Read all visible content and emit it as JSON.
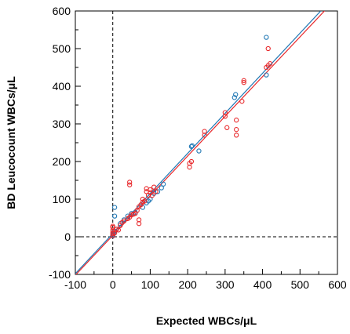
{
  "chart_data": {
    "type": "scatter",
    "title": "",
    "xlabel": "Expected WBCs/μL",
    "ylabel": "BD Leucocount WBCs/μL",
    "xlim": [
      -100,
      600
    ],
    "ylim": [
      -100,
      600
    ],
    "x_ticks": [
      "-100",
      "0",
      "100",
      "200",
      "300",
      "400",
      "500",
      "600"
    ],
    "y_ticks": [
      "-100",
      "0",
      "100",
      "200",
      "300",
      "400",
      "500",
      "600"
    ],
    "grid": false,
    "legend": "none",
    "reference_lines": [
      {
        "orientation": "vertical",
        "value": 0,
        "style": "dashed"
      },
      {
        "orientation": "horizontal",
        "value": 0,
        "style": "dashed"
      }
    ],
    "series": [
      {
        "color": "#1f77b4",
        "points": [
          [
            0,
            2
          ],
          [
            0,
            5
          ],
          [
            2,
            8
          ],
          [
            5,
            15
          ],
          [
            5,
            55
          ],
          [
            5,
            78
          ],
          [
            10,
            20
          ],
          [
            20,
            35
          ],
          [
            30,
            45
          ],
          [
            40,
            55
          ],
          [
            50,
            62
          ],
          [
            60,
            65
          ],
          [
            80,
            78
          ],
          [
            90,
            90
          ],
          [
            95,
            95
          ],
          [
            100,
            100
          ],
          [
            110,
            115
          ],
          [
            120,
            120
          ],
          [
            130,
            130
          ],
          [
            135,
            140
          ],
          [
            210,
            240
          ],
          [
            212,
            242
          ],
          [
            230,
            228
          ],
          [
            325,
            370
          ],
          [
            328,
            378
          ],
          [
            410,
            430
          ],
          [
            410,
            530
          ]
        ],
        "fit": {
          "x": [
            -100,
            560
          ],
          "y": [
            -98,
            605
          ]
        }
      },
      {
        "color": "#e8282b",
        "points": [
          [
            0,
            3
          ],
          [
            0,
            8
          ],
          [
            0,
            12
          ],
          [
            0,
            18
          ],
          [
            0,
            25
          ],
          [
            0,
            28
          ],
          [
            5,
            10
          ],
          [
            10,
            20
          ],
          [
            15,
            18
          ],
          [
            20,
            30
          ],
          [
            25,
            38
          ],
          [
            30,
            42
          ],
          [
            40,
            48
          ],
          [
            45,
            52
          ],
          [
            50,
            58
          ],
          [
            55,
            60
          ],
          [
            60,
            62
          ],
          [
            65,
            70
          ],
          [
            70,
            35
          ],
          [
            70,
            45
          ],
          [
            70,
            80
          ],
          [
            75,
            85
          ],
          [
            80,
            92
          ],
          [
            80,
            100
          ],
          [
            85,
            95
          ],
          [
            90,
            120
          ],
          [
            90,
            128
          ],
          [
            95,
            110
          ],
          [
            100,
            118
          ],
          [
            100,
            125
          ],
          [
            105,
            110
          ],
          [
            110,
            132
          ],
          [
            115,
            120
          ],
          [
            45,
            138
          ],
          [
            45,
            145
          ],
          [
            205,
            185
          ],
          [
            205,
            195
          ],
          [
            210,
            200
          ],
          [
            245,
            270
          ],
          [
            245,
            280
          ],
          [
            300,
            320
          ],
          [
            300,
            330
          ],
          [
            305,
            290
          ],
          [
            330,
            270
          ],
          [
            330,
            285
          ],
          [
            330,
            310
          ],
          [
            345,
            360
          ],
          [
            350,
            410
          ],
          [
            350,
            415
          ],
          [
            410,
            450
          ],
          [
            415,
            455
          ],
          [
            420,
            460
          ],
          [
            415,
            500
          ]
        ],
        "fit": {
          "x": [
            -100,
            570
          ],
          "y": [
            -102,
            605
          ]
        }
      }
    ]
  }
}
